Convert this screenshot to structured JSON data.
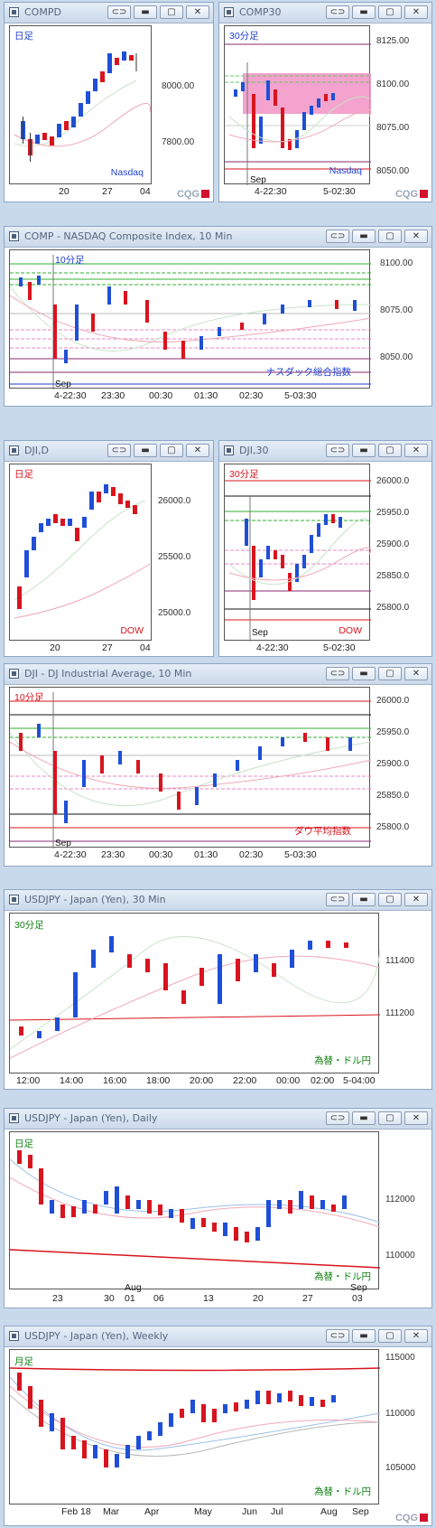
{
  "windows": [
    {
      "title": "COMPD",
      "y_ticks": [
        "8000.00",
        "7800.00"
      ],
      "x_ticks": [
        "20",
        "27",
        "04"
      ],
      "period_label": "日足",
      "index_label": "Nasdaq"
    },
    {
      "title": "COMP30",
      "y_ticks": [
        "8125.00",
        "8100.00",
        "8075.00",
        "8050.00"
      ],
      "x_ticks": [
        "4-22:30",
        "5-02:30"
      ],
      "period_label": "30分足",
      "index_label": "Nasdaq",
      "sep_label": "Sep"
    },
    {
      "title": "COMP - NASDAQ Composite Index, 10 Min",
      "y_ticks": [
        "8100.00",
        "8075.00",
        "8050.00"
      ],
      "x_ticks": [
        "4-22:30",
        "23:30",
        "00:30",
        "01:30",
        "02:30",
        "5-03:30"
      ],
      "period_label": "10分足",
      "index_label": "ナスダック総合指数",
      "sep_label": "Sep"
    },
    {
      "title": "DJI,D",
      "y_ticks": [
        "26000.0",
        "25500.0",
        "25000.0"
      ],
      "x_ticks": [
        "20",
        "27",
        "04"
      ],
      "period_label": "日足",
      "index_label": "DOW"
    },
    {
      "title": "DJI,30",
      "y_ticks": [
        "26000.0",
        "25950.0",
        "25900.0",
        "25850.0",
        "25800.0"
      ],
      "x_ticks": [
        "4-22:30",
        "5-02:30"
      ],
      "period_label": "30分足",
      "index_label": "DOW",
      "sep_label": "Sep"
    },
    {
      "title": "DJI - DJ Industrial Average, 10 Min",
      "y_ticks": [
        "26000.0",
        "25950.0",
        "25900.0",
        "25850.0",
        "25800.0"
      ],
      "x_ticks": [
        "4-22:30",
        "23:30",
        "00:30",
        "01:30",
        "02:30",
        "5-03:30"
      ],
      "period_label": "10分足",
      "index_label": "ダウ平均指数",
      "sep_label": "Sep"
    },
    {
      "title": "USDJPY - Japan (Yen), 30 Min",
      "y_ticks": [
        "111400",
        "111200"
      ],
      "x_ticks": [
        "12:00",
        "14:00",
        "16:00",
        "18:00",
        "20:00",
        "22:00",
        "00:00",
        "02:00",
        "5-04:00"
      ],
      "period_label": "30分足",
      "index_label": "為替・ドル円"
    },
    {
      "title": "USDJPY - Japan (Yen), Daily",
      "y_ticks": [
        "112000",
        "110000"
      ],
      "x_ticks": [
        "23",
        "30",
        "01",
        "06",
        "13",
        "20",
        "27",
        "03"
      ],
      "x_ticks_upper": [
        "Aug",
        "Sep"
      ],
      "period_label": "日足",
      "index_label": "為替・ドル円"
    },
    {
      "title": "USDJPY - Japan (Yen), Weekly",
      "y_ticks": [
        "115000",
        "110000",
        "105000"
      ],
      "x_ticks": [
        "Feb 18",
        "Mar",
        "Apr",
        "May",
        "Jun",
        "Jul",
        "Aug",
        "Sep"
      ],
      "period_label": "月足",
      "index_label": "為替・ドル円"
    }
  ],
  "brand": "CQG",
  "buttons": {
    "link": "⊂⊃",
    "min": "▬",
    "max": "▢",
    "close": "✕"
  },
  "colors": {
    "up": "#1f4fd6",
    "down": "#d8141e",
    "green_label": "#108010",
    "red_label": "#d8141e",
    "blue_label": "#1f3fd0"
  }
}
